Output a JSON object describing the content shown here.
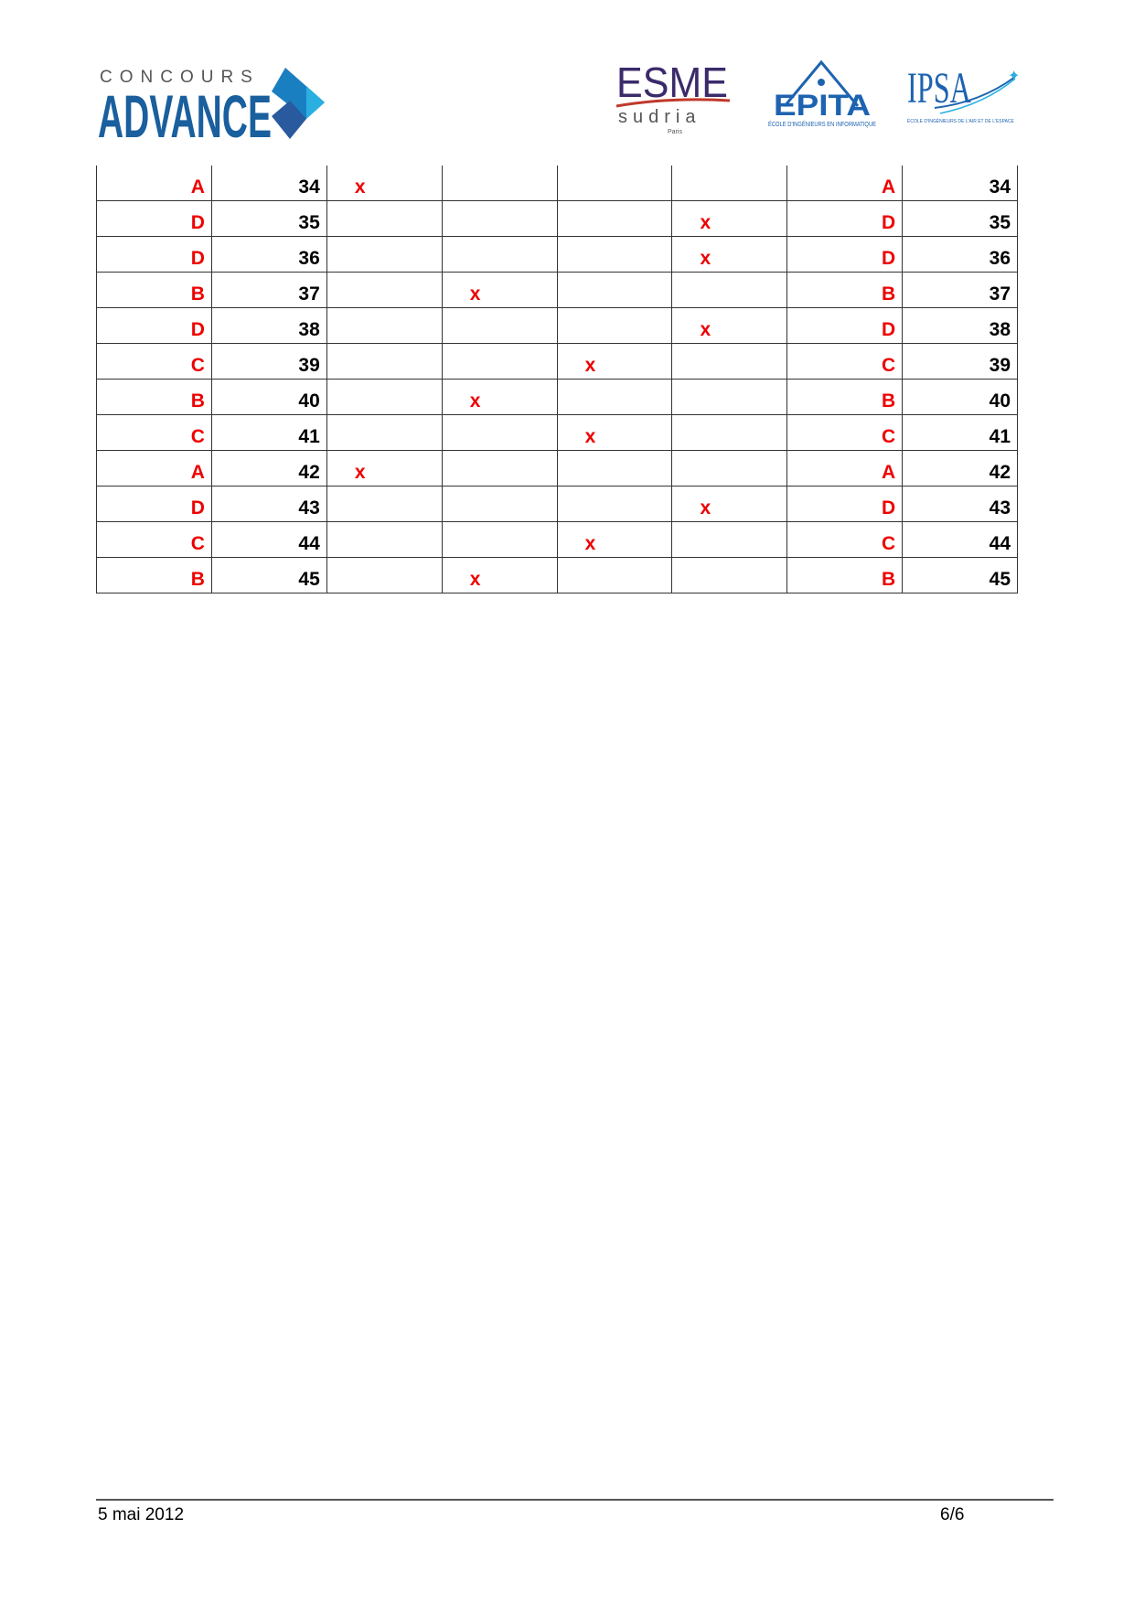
{
  "header": {
    "logos": [
      {
        "name": "Concours Advance",
        "text_top": "CONCOURS",
        "text_main": "ADVANCE"
      },
      {
        "name": "ESME Sudria",
        "text_top": "ESME",
        "text_sub": "sudria",
        "text_city": "Paris"
      },
      {
        "name": "EPITA",
        "text_main": "EPITA",
        "text_sub": "ÉCOLE D'INGÉNIEURS EN INFORMATIQUE"
      },
      {
        "name": "IPSA",
        "text_main": "IPSA",
        "text_sub": "ÉCOLE D'INGÉNIEURS DE L'AIR ET DE L'ESPACE"
      }
    ]
  },
  "colors": {
    "answer": "#e00000",
    "advance_blue": "#1a5f9e",
    "esme_purple": "#3b2a6b",
    "epita_blue": "#1d63b0"
  },
  "table": {
    "rows": [
      {
        "answer": "A",
        "number": "34",
        "mark_col": 0
      },
      {
        "answer": "D",
        "number": "35",
        "mark_col": 3
      },
      {
        "answer": "D",
        "number": "36",
        "mark_col": 3
      },
      {
        "answer": "B",
        "number": "37",
        "mark_col": 1
      },
      {
        "answer": "D",
        "number": "38",
        "mark_col": 3
      },
      {
        "answer": "C",
        "number": "39",
        "mark_col": 2
      },
      {
        "answer": "B",
        "number": "40",
        "mark_col": 1
      },
      {
        "answer": "C",
        "number": "41",
        "mark_col": 2
      },
      {
        "answer": "A",
        "number": "42",
        "mark_col": 0
      },
      {
        "answer": "D",
        "number": "43",
        "mark_col": 3
      },
      {
        "answer": "C",
        "number": "44",
        "mark_col": 2
      },
      {
        "answer": "B",
        "number": "45",
        "mark_col": 1
      }
    ],
    "mark": "x"
  },
  "footer": {
    "date": "5 mai 2012",
    "page": "6/6"
  }
}
